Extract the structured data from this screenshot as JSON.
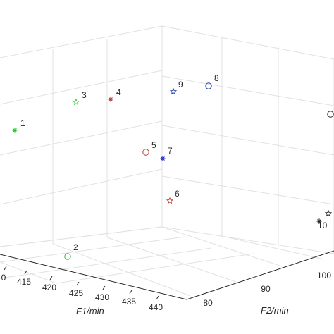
{
  "chart_data": {
    "type": "scatter3d",
    "grid": true,
    "xlabel": "F1/min",
    "ylabel": "F2/min",
    "x_ticks": [
      "0",
      "415",
      "420",
      "425",
      "430",
      "435",
      "440"
    ],
    "y_ticks": [
      "80",
      "90",
      "100"
    ],
    "points": [
      {
        "label": "1",
        "marker": "asterisk",
        "color": "#22c322"
      },
      {
        "label": "2",
        "marker": "circle",
        "color": "#33bb33"
      },
      {
        "label": "3",
        "marker": "star",
        "color": "#33cc33"
      },
      {
        "label": "4",
        "marker": "asterisk",
        "color": "#c0392b"
      },
      {
        "label": "5",
        "marker": "circle",
        "color": "#c0392b"
      },
      {
        "label": "6",
        "marker": "star",
        "color": "#c0392b"
      },
      {
        "label": "7",
        "marker": "asterisk",
        "color": "#1f2fbf"
      },
      {
        "label": "8",
        "marker": "circle",
        "color": "#1f3f9f"
      },
      {
        "label": "9",
        "marker": "star",
        "color": "#1f3f9f"
      },
      {
        "label": "10",
        "marker": "asterisk",
        "color": "#222222"
      },
      {
        "label": "",
        "marker": "star",
        "color": "#222222"
      },
      {
        "label": "",
        "marker": "circle",
        "color": "#333333"
      }
    ]
  }
}
